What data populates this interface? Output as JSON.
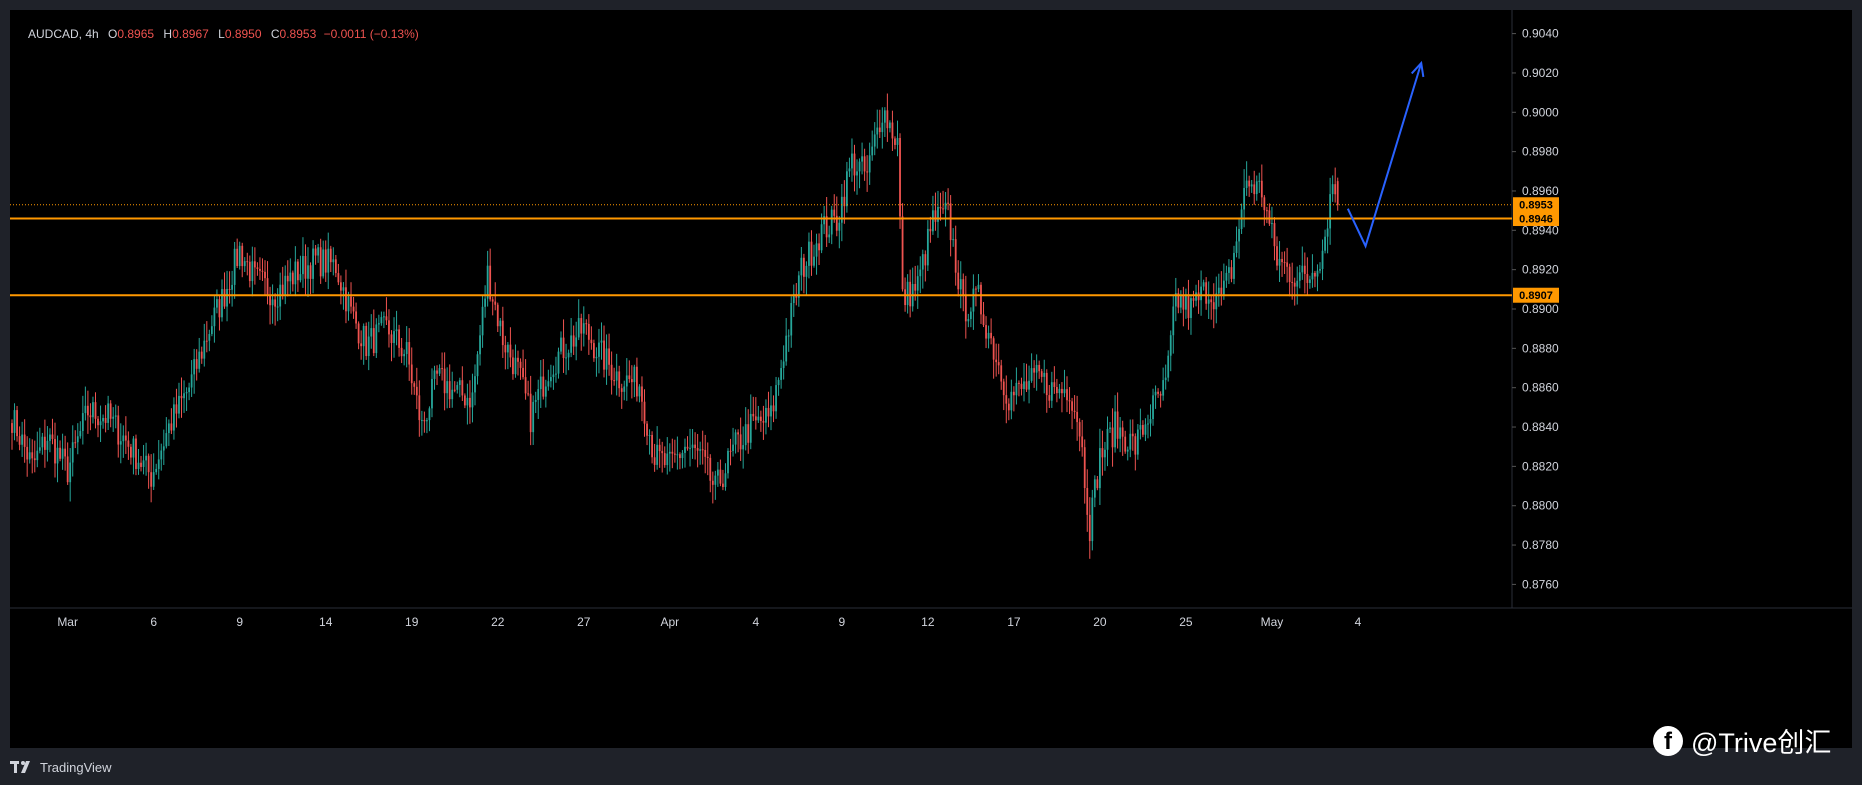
{
  "legend": {
    "symbol": "AUDCAD, 4h",
    "o_label": "O",
    "o_value": "0.8965",
    "h_label": "H",
    "h_value": "0.8967",
    "l_label": "L",
    "l_value": "0.8950",
    "c_label": "C",
    "c_value": "0.8953",
    "change": "−0.0011 (−0.13%)"
  },
  "footer": {
    "brand": "TradingView"
  },
  "watermark": {
    "text": "@Trive创汇",
    "icon": "facebook-icon"
  },
  "colors": {
    "background": "#000000",
    "up": "#26a69a",
    "down": "#ef5350",
    "level_line": "#ff9800",
    "projection": "#2962ff",
    "axis_text": "#d1d4dc"
  },
  "chart_data": {
    "type": "candlestick",
    "symbol": "AUDCAD",
    "timeframe": "4h",
    "ylim": [
      0.8748,
      0.9052
    ],
    "y_ticks": [
      "0.9040",
      "0.9020",
      "0.9000",
      "0.8980",
      "0.8960",
      "0.8940",
      "0.8920",
      "0.8900",
      "0.8880",
      "0.8860",
      "0.8840",
      "0.8820",
      "0.8800",
      "0.8780",
      "0.8760"
    ],
    "x_ticks": [
      {
        "label": "Mar",
        "idx": 22
      },
      {
        "label": "6",
        "idx": 56
      },
      {
        "label": "9",
        "idx": 90
      },
      {
        "label": "14",
        "idx": 124
      },
      {
        "label": "19",
        "idx": 158
      },
      {
        "label": "22",
        "idx": 192
      },
      {
        "label": "27",
        "idx": 226
      },
      {
        "label": "Apr",
        "idx": 260
      },
      {
        "label": "4",
        "idx": 294
      },
      {
        "label": "9",
        "idx": 328
      },
      {
        "label": "12",
        "idx": 362
      },
      {
        "label": "17",
        "idx": 396
      },
      {
        "label": "20",
        "idx": 430
      },
      {
        "label": "25",
        "idx": 464
      },
      {
        "label": "May",
        "idx": 498
      },
      {
        "label": "4",
        "idx": 532
      }
    ],
    "horizontal_levels": [
      {
        "price": 0.8946,
        "label": "0.8946"
      },
      {
        "price": 0.8907,
        "label": "0.8907"
      }
    ],
    "last_price": {
      "price": 0.8953,
      "label": "0.8953"
    },
    "projection_path": [
      {
        "idx": 528,
        "price": 0.8951
      },
      {
        "idx": 535,
        "price": 0.8932
      },
      {
        "idx": 557,
        "price": 0.9025
      }
    ],
    "anchors": [
      {
        "idx": 0,
        "price": 0.8845
      },
      {
        "idx": 8,
        "price": 0.882
      },
      {
        "idx": 14,
        "price": 0.8835
      },
      {
        "idx": 22,
        "price": 0.8818
      },
      {
        "idx": 30,
        "price": 0.8848
      },
      {
        "idx": 38,
        "price": 0.8845
      },
      {
        "idx": 45,
        "price": 0.8833
      },
      {
        "idx": 55,
        "price": 0.8815
      },
      {
        "idx": 62,
        "price": 0.884
      },
      {
        "idx": 70,
        "price": 0.886
      },
      {
        "idx": 78,
        "price": 0.889
      },
      {
        "idx": 84,
        "price": 0.8908
      },
      {
        "idx": 90,
        "price": 0.893
      },
      {
        "idx": 96,
        "price": 0.8915
      },
      {
        "idx": 104,
        "price": 0.8908
      },
      {
        "idx": 112,
        "price": 0.8918
      },
      {
        "idx": 120,
        "price": 0.8925
      },
      {
        "idx": 128,
        "price": 0.8922
      },
      {
        "idx": 134,
        "price": 0.8898
      },
      {
        "idx": 140,
        "price": 0.8882
      },
      {
        "idx": 148,
        "price": 0.889
      },
      {
        "idx": 156,
        "price": 0.8877
      },
      {
        "idx": 162,
        "price": 0.884
      },
      {
        "idx": 168,
        "price": 0.8865
      },
      {
        "idx": 176,
        "price": 0.8857
      },
      {
        "idx": 182,
        "price": 0.8855
      },
      {
        "idx": 188,
        "price": 0.8918
      },
      {
        "idx": 194,
        "price": 0.8885
      },
      {
        "idx": 200,
        "price": 0.8868
      },
      {
        "idx": 205,
        "price": 0.8845
      },
      {
        "idx": 212,
        "price": 0.887
      },
      {
        "idx": 218,
        "price": 0.888
      },
      {
        "idx": 226,
        "price": 0.889
      },
      {
        "idx": 232,
        "price": 0.8878
      },
      {
        "idx": 240,
        "price": 0.8865
      },
      {
        "idx": 248,
        "price": 0.8862
      },
      {
        "idx": 254,
        "price": 0.8825
      },
      {
        "idx": 260,
        "price": 0.882
      },
      {
        "idx": 266,
        "price": 0.883
      },
      {
        "idx": 272,
        "price": 0.8825
      },
      {
        "idx": 278,
        "price": 0.8808
      },
      {
        "idx": 286,
        "price": 0.883
      },
      {
        "idx": 292,
        "price": 0.884
      },
      {
        "idx": 300,
        "price": 0.8845
      },
      {
        "idx": 306,
        "price": 0.8885
      },
      {
        "idx": 312,
        "price": 0.892
      },
      {
        "idx": 320,
        "price": 0.894
      },
      {
        "idx": 326,
        "price": 0.8945
      },
      {
        "idx": 332,
        "price": 0.8975
      },
      {
        "idx": 338,
        "price": 0.8968
      },
      {
        "idx": 344,
        "price": 0.9002
      },
      {
        "idx": 350,
        "price": 0.8985
      },
      {
        "idx": 352,
        "price": 0.8905
      },
      {
        "idx": 358,
        "price": 0.8912
      },
      {
        "idx": 364,
        "price": 0.8945
      },
      {
        "idx": 370,
        "price": 0.8948
      },
      {
        "idx": 376,
        "price": 0.89
      },
      {
        "idx": 382,
        "price": 0.8905
      },
      {
        "idx": 388,
        "price": 0.888
      },
      {
        "idx": 394,
        "price": 0.8855
      },
      {
        "idx": 400,
        "price": 0.886
      },
      {
        "idx": 406,
        "price": 0.8865
      },
      {
        "idx": 412,
        "price": 0.8858
      },
      {
        "idx": 418,
        "price": 0.886
      },
      {
        "idx": 422,
        "price": 0.884
      },
      {
        "idx": 426,
        "price": 0.879
      },
      {
        "idx": 430,
        "price": 0.8825
      },
      {
        "idx": 436,
        "price": 0.884
      },
      {
        "idx": 444,
        "price": 0.883
      },
      {
        "idx": 450,
        "price": 0.8848
      },
      {
        "idx": 456,
        "price": 0.886
      },
      {
        "idx": 460,
        "price": 0.8905
      },
      {
        "idx": 466,
        "price": 0.89
      },
      {
        "idx": 472,
        "price": 0.891
      },
      {
        "idx": 478,
        "price": 0.8905
      },
      {
        "idx": 482,
        "price": 0.892
      },
      {
        "idx": 488,
        "price": 0.8965
      },
      {
        "idx": 494,
        "price": 0.896
      },
      {
        "idx": 500,
        "price": 0.8925
      },
      {
        "idx": 506,
        "price": 0.8918
      },
      {
        "idx": 512,
        "price": 0.8915
      },
      {
        "idx": 518,
        "price": 0.893
      },
      {
        "idx": 522,
        "price": 0.8965
      },
      {
        "idx": 524,
        "price": 0.8953
      }
    ]
  }
}
